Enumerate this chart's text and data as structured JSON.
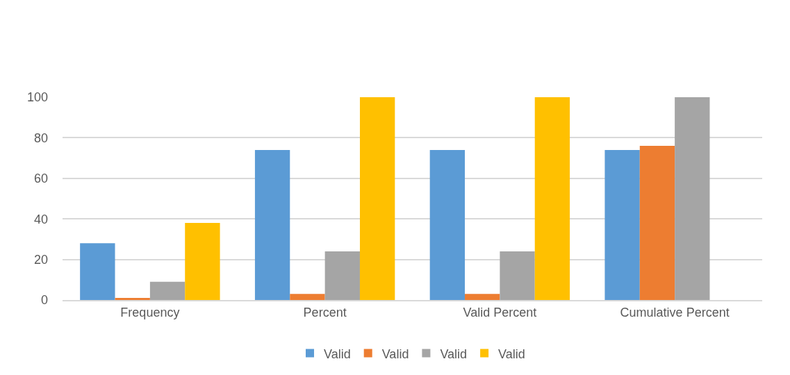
{
  "chart_data": {
    "type": "bar",
    "categories": [
      "Frequency",
      "Percent",
      "Valid Percent",
      "Cumulative Percent"
    ],
    "series": [
      {
        "name": "Valid",
        "color": "#5b9bd5",
        "values": [
          28,
          74,
          74,
          74
        ]
      },
      {
        "name": "Valid",
        "color": "#ed7d31",
        "values": [
          1,
          3,
          3,
          76
        ]
      },
      {
        "name": "Valid",
        "color": "#a5a5a5",
        "values": [
          9,
          24,
          24,
          100
        ]
      },
      {
        "name": "Valid",
        "color": "#ffc000",
        "values": [
          38,
          100,
          100,
          null
        ]
      }
    ],
    "ylim": [
      0,
      100
    ],
    "yticks": [
      0,
      20,
      40,
      60,
      80,
      100
    ],
    "grid": "y",
    "legend": "bottom"
  }
}
